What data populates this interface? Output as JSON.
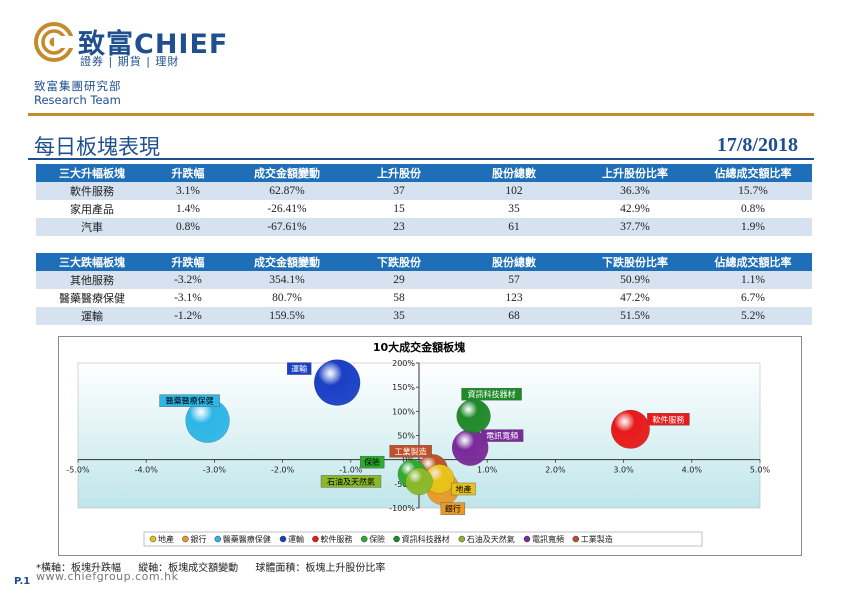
{
  "header": {
    "brand_name": "致富CHIEF",
    "brand_tagline": "證券 | 期貨 | 理財",
    "dept_cn": "致富集團研究部",
    "dept_en": "Research Team",
    "title": "每日板塊表現",
    "date": "17/8/2018"
  },
  "table_up": {
    "headers": [
      "三大升幅板塊",
      "升跌幅",
      "成交金額變動",
      "上升股份",
      "股份總數",
      "上升股份比率",
      "佔總成交額比率"
    ],
    "rows": [
      [
        "軟件服務",
        "3.1%",
        "62.87%",
        "37",
        "102",
        "36.3%",
        "15.7%"
      ],
      [
        "家用產品",
        "1.4%",
        "-26.41%",
        "15",
        "35",
        "42.9%",
        "0.8%"
      ],
      [
        "汽車",
        "0.8%",
        "-67.61%",
        "23",
        "61",
        "37.7%",
        "1.9%"
      ]
    ]
  },
  "table_down": {
    "headers": [
      "三大跌幅板塊",
      "升跌幅",
      "成交金額變動",
      "下跌股份",
      "股份總數",
      "下跌股份比率",
      "佔總成交額比率"
    ],
    "rows": [
      [
        "其他服務",
        "-3.2%",
        "354.1%",
        "29",
        "57",
        "50.9%",
        "1.1%"
      ],
      [
        "醫藥醫療保健",
        "-3.1%",
        "80.7%",
        "58",
        "123",
        "47.2%",
        "6.7%"
      ],
      [
        "運輸",
        "-1.2%",
        "159.5%",
        "35",
        "68",
        "51.5%",
        "5.2%"
      ]
    ]
  },
  "chart_data": {
    "type": "scatter",
    "title": "10大成交金額板塊",
    "xlim": [
      -5.0,
      5.0
    ],
    "ylim": [
      -100,
      200
    ],
    "x_ticks": [
      "-5.0%",
      "-4.0%",
      "-3.0%",
      "-2.0%",
      "-1.0%",
      "0.0%",
      "1.0%",
      "2.0%",
      "3.0%",
      "4.0%",
      "5.0%"
    ],
    "y_ticks": [
      "-100%",
      "-50%",
      "0%",
      "50%",
      "100%",
      "150%",
      "200%"
    ],
    "legend_position": "bottom",
    "series": [
      {
        "name": "地產",
        "x": 0.3,
        "y": -40,
        "size": 21,
        "color": "#e8c21a"
      },
      {
        "name": "銀行",
        "x": 0.35,
        "y": -60,
        "size": 26,
        "color": "#e89a2a"
      },
      {
        "name": "醫藥醫療保健",
        "x": -3.1,
        "y": 80.7,
        "size": 47.2,
        "color": "#2db6e6"
      },
      {
        "name": "運輸",
        "x": -1.2,
        "y": 159.5,
        "size": 51.5,
        "color": "#1a3fc4"
      },
      {
        "name": "軟件服務",
        "x": 3.1,
        "y": 62.87,
        "size": 36.3,
        "color": "#e81a1a"
      },
      {
        "name": "保險",
        "x": -0.1,
        "y": -30,
        "size": 20,
        "color": "#2faa2f"
      },
      {
        "name": "資訊科技器材",
        "x": 0.8,
        "y": 90,
        "size": 28,
        "color": "#1f8a2a"
      },
      {
        "name": "石油及天然氣",
        "x": 0.0,
        "y": -45,
        "size": 18,
        "color": "#8ab82a"
      },
      {
        "name": "電訊寬頻",
        "x": 0.75,
        "y": 25,
        "size": 32,
        "color": "#7a2a9a"
      },
      {
        "name": "工業製造",
        "x": 0.2,
        "y": -20,
        "size": 22,
        "color": "#c0502a"
      }
    ]
  },
  "footer": {
    "footnote_axis_x": "*橫軸：板塊升跌幅",
    "footnote_axis_y": "縱軸：板塊成交額變動",
    "footnote_size": "球體面積：板塊上升股份比率",
    "website": "www.chiefgroup.com.hk",
    "page": "P.1"
  }
}
